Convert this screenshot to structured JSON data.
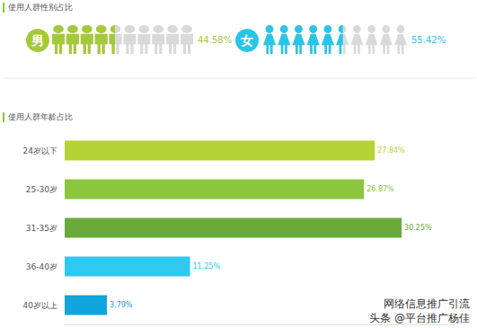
{
  "chart_data": [
    {
      "type": "pictorialBar",
      "title": "使用人群性别占比",
      "categories": [
        "男",
        "女"
      ],
      "values": [
        44.58,
        55.42
      ],
      "value_labels": [
        "44.58%",
        "55.42%"
      ],
      "colors": [
        "#a6c93a",
        "#29c5e6"
      ],
      "xlim": [
        0,
        100
      ],
      "data_labels": true,
      "tick_labels": false,
      "grid": false
    },
    {
      "type": "bar",
      "title": "使用人群年龄占比",
      "orientation": "horizontal",
      "categories": [
        "24岁以下",
        "25-30岁",
        "31-35岁",
        "36-40岁",
        "40岁以上"
      ],
      "values": [
        27.84,
        26.87,
        30.25,
        11.25,
        3.79
      ],
      "value_labels": [
        "27.84%",
        "26.87%",
        "30.25%",
        "11.25%",
        "3.79%"
      ],
      "colors": [
        "#b5d334",
        "#8cc63f",
        "#6aaa3a",
        "#2ec8f0",
        "#10a5dd"
      ],
      "xlim": [
        0,
        35
      ],
      "data_labels": true,
      "tick_labels": "y",
      "grid": false,
      "annotations": [
        "网络信息推广引流",
        "头条 @平台推广杨佳"
      ]
    }
  ]
}
